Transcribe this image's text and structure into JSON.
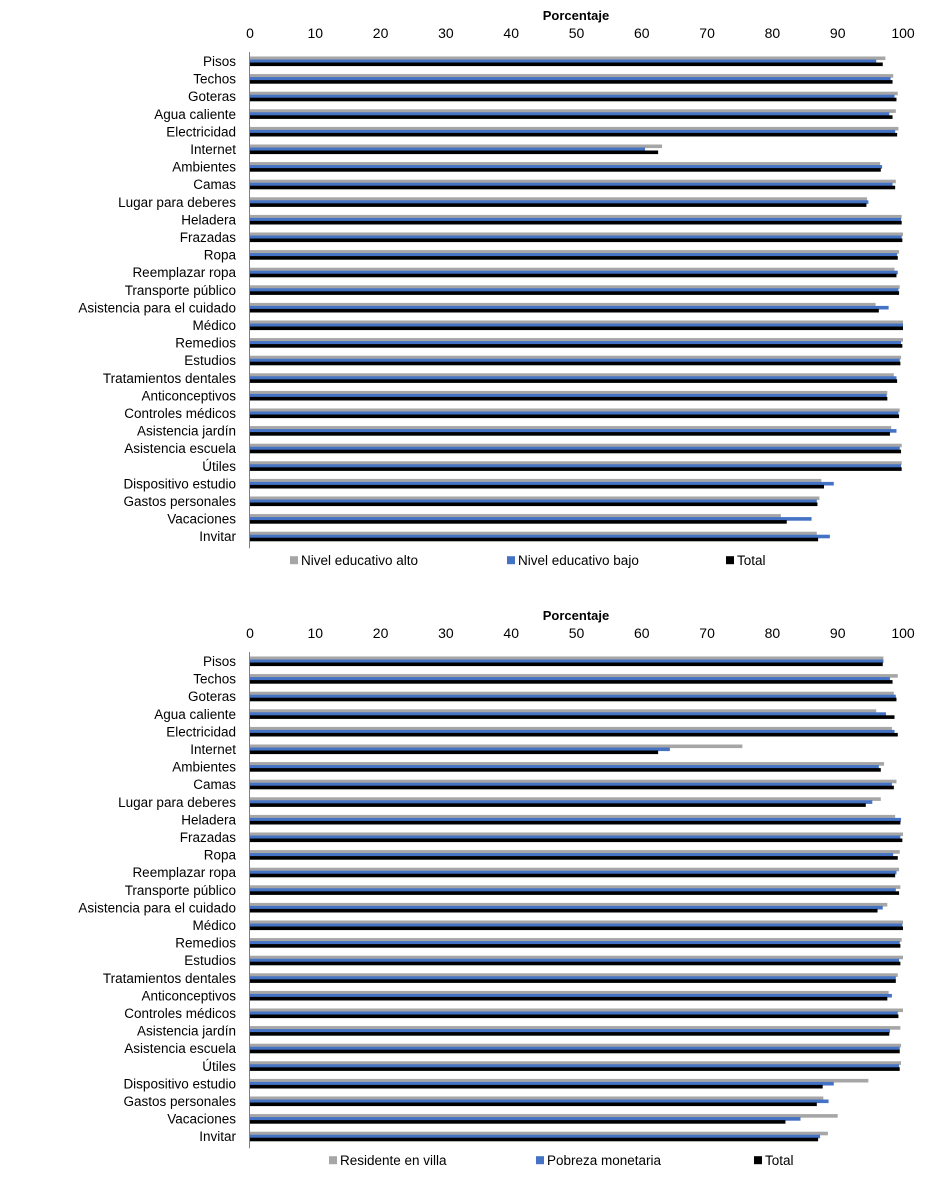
{
  "colors": {
    "series1": "#a6a6a6",
    "series2": "#4472c4",
    "series3": "#000000"
  },
  "chart_data": [
    {
      "type": "bar",
      "orientation": "horizontal",
      "xlabel": "Porcentaje",
      "xlim": [
        0,
        100
      ],
      "ticks": [
        "0",
        "10",
        "20",
        "30",
        "40",
        "50",
        "60",
        "70",
        "80",
        "90",
        "100"
      ],
      "legend_position": "bottom",
      "categories": [
        "Pisos",
        "Techos",
        "Goteras",
        "Agua caliente",
        "Electricidad",
        "Internet",
        "Ambientes",
        "Camas",
        "Lugar para deberes",
        "Heladera",
        "Frazadas",
        "Ropa",
        "Reemplazar ropa",
        "Transporte público",
        "Asistencia para el cuidado",
        "Médico",
        "Remedios",
        "Estudios",
        "Tratamientos dentales",
        "Anticonceptivos",
        "Controles médicos",
        "Asistencia jardín",
        "Asistencia escuela",
        "Útiles",
        "Dispositivo estudio",
        "Gastos personales",
        "Vacaciones",
        "Invitar"
      ],
      "series": [
        {
          "name": "Nivel educativo alto",
          "color": "#a6a6a6",
          "values": [
            97.3,
            98.5,
            99.2,
            98.9,
            99.3,
            63.1,
            96.5,
            98.9,
            94.5,
            99.8,
            100,
            99.4,
            98.7,
            99.5,
            95.8,
            100,
            100,
            99.7,
            98.6,
            97.6,
            99.5,
            98.2,
            99.8,
            99.8,
            87.5,
            87.2,
            81.3,
            86.8
          ]
        },
        {
          "name": "Nivel educativo bajo",
          "color": "#4472c4",
          "values": [
            95.9,
            98.1,
            98.7,
            97.9,
            98.8,
            60.5,
            96.8,
            98.4,
            94.7,
            99.7,
            99.8,
            99.1,
            99.2,
            99.3,
            97.8,
            100,
            99.7,
            99.5,
            99.0,
            97.5,
            99.3,
            99.0,
            99.5,
            99.7,
            89.4,
            86.8,
            86.0,
            88.8
          ]
        },
        {
          "name": "Total",
          "color": "#000000",
          "values": [
            96.9,
            98.4,
            99.0,
            98.4,
            99.1,
            62.5,
            96.6,
            98.8,
            94.4,
            99.8,
            99.9,
            99.2,
            99.0,
            99.4,
            96.3,
            100,
            99.9,
            99.6,
            99.1,
            97.6,
            99.4,
            98.0,
            99.7,
            99.8,
            87.9,
            86.9,
            82.2,
            87.0
          ]
        }
      ]
    },
    {
      "type": "bar",
      "orientation": "horizontal",
      "xlabel": "Porcentaje",
      "xlim": [
        0,
        100
      ],
      "ticks": [
        "0",
        "10",
        "20",
        "30",
        "40",
        "50",
        "60",
        "70",
        "80",
        "90",
        "100"
      ],
      "legend_position": "bottom",
      "categories": [
        "Pisos",
        "Techos",
        "Goteras",
        "Agua caliente",
        "Electricidad",
        "Internet",
        "Ambientes",
        "Camas",
        "Lugar para deberes",
        "Heladera",
        "Frazadas",
        "Ropa",
        "Reemplazar ropa",
        "Transporte público",
        "Asistencia para el cuidado",
        "Médico",
        "Remedios",
        "Estudios",
        "Tratamientos dentales",
        "Anticonceptivos",
        "Controles médicos",
        "Asistencia jardín",
        "Asistencia escuela",
        "Útiles",
        "Dispositivo estudio",
        "Gastos personales",
        "Vacaciones",
        "Invitar"
      ],
      "series": [
        {
          "name": "Residente en villa",
          "color": "#a6a6a6",
          "values": [
            97.0,
            99.2,
            98.6,
            95.9,
            98.3,
            75.4,
            97.1,
            99.0,
            96.6,
            98.8,
            100,
            99.5,
            99.4,
            99.6,
            97.6,
            100,
            99.8,
            100,
            99.2,
            97.8,
            100,
            99.6,
            99.7,
            99.7,
            94.7,
            87.8,
            90.0,
            88.5
          ]
        },
        {
          "name": "Pobreza monetaria",
          "color": "#4472c4",
          "values": [
            97.0,
            98.0,
            98.9,
            97.4,
            98.7,
            64.3,
            96.3,
            98.3,
            95.3,
            99.7,
            99.6,
            98.5,
            99.0,
            98.9,
            96.9,
            99.9,
            99.5,
            99.4,
            98.9,
            98.3,
            99.2,
            98.0,
            99.5,
            99.4,
            89.4,
            88.6,
            84.3,
            87.3
          ]
        },
        {
          "name": "Total",
          "color": "#000000",
          "values": [
            96.9,
            98.4,
            99.0,
            98.7,
            99.2,
            62.5,
            96.6,
            98.6,
            94.3,
            99.6,
            99.9,
            99.2,
            98.8,
            99.4,
            96.1,
            100,
            99.6,
            99.6,
            98.9,
            97.6,
            99.3,
            97.9,
            99.5,
            99.5,
            87.7,
            86.8,
            82.0,
            87.0
          ]
        }
      ]
    }
  ]
}
